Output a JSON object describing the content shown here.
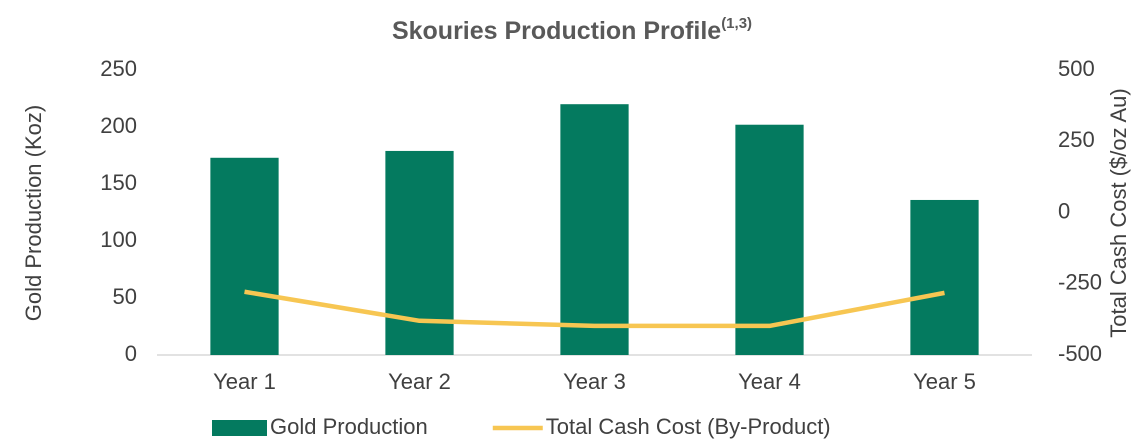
{
  "chart_data": {
    "type": "bar_line",
    "title": "Skouries Production Profile",
    "title_superscript": "(1,3)",
    "ylabel": "Gold Production (Koz)",
    "y2label": "Total Cash Cost ($/oz Au)",
    "categories": [
      "Year 1",
      "Year 2",
      "Year 3",
      "Year 4",
      "Year 5"
    ],
    "series": [
      {
        "name": "Gold Production",
        "type": "bar",
        "color": "#047a5f",
        "values": [
          173,
          179,
          220,
          202,
          136
        ]
      },
      {
        "name": "Total Cash Cost (By-Product)",
        "type": "line",
        "axis": "y2",
        "color": "#f7c652",
        "values": [
          -278,
          -380,
          -398,
          -398,
          -282
        ]
      }
    ],
    "ylim": [
      0,
      250
    ],
    "yticks": [
      0,
      50,
      100,
      150,
      200,
      250
    ],
    "y2lim": [
      -500,
      500
    ],
    "y2ticks": [
      -500,
      -250,
      0,
      250,
      500
    ],
    "legend": "bottom"
  }
}
